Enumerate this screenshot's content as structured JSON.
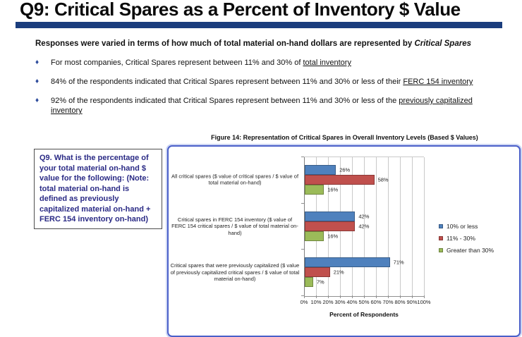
{
  "slide": {
    "title": "Q9:  Critical Spares as a Percent of Inventory $ Value",
    "intro": [
      {
        "text": "Responses were varied in terms of how much of total material on-hand dollars are represented by ",
        "style": "plain"
      },
      {
        "text": "Critical Spares",
        "style": "italic"
      }
    ],
    "bullet_marker": "♦",
    "bullets": [
      [
        {
          "text": "For most companies, Critical Spares represent between 11% and 30% of ",
          "style": "plain"
        },
        {
          "text": "total inventory",
          "style": "underline"
        }
      ],
      [
        {
          "text": "84% of the respondents indicated that Critical Spares represent between 11% and 30% or less of their ",
          "style": "plain"
        },
        {
          "text": "FERC 154 inventory",
          "style": "underline"
        }
      ],
      [
        {
          "text": "92% of the respondents indicated that Critical Spares represent between 11% and 30% or less of the ",
          "style": "plain"
        },
        {
          "text": "previously capitalized inventory",
          "style": "underline"
        }
      ]
    ],
    "question_box": "Q9.  What is the percentage of your total material on-hand $ value for the following:  (Note: total material on-hand is defined as previously capitalized material on-hand + FERC 154 inventory on-hand)",
    "figure_caption": "Figure 14:  Representation of Critical Spares in Overall Inventory Levels (Based $ Values)"
  },
  "colors": {
    "title_rule": "#1b3d7d",
    "bullet_marker": "#2b4a9b",
    "question_text": "#2a2a85",
    "chart_border": "#4a5fc9",
    "series_blue": "#4f81bd",
    "series_red": "#c0504d",
    "series_green": "#9bbb59"
  },
  "chart_data": {
    "type": "bar",
    "orientation": "horizontal",
    "title": "Figure 14:  Representation of Critical Spares in Overall Inventory Levels (Based $ Values)",
    "categories": [
      "All critical spares ($ value of critical spares / $ value of total material on-hand)",
      "Critical spares in FERC 154 inventory ($ value of FERC 154 critical spares / $ value of total material on-hand)",
      "Critical spares that were previously capitalized ($ value of previously capitalized critical spares / $ value of total material on-hand)"
    ],
    "series": [
      {
        "name": "10% or less",
        "color": "#4f81bd",
        "values": [
          26,
          42,
          71
        ]
      },
      {
        "name": "11% - 30%",
        "color": "#c0504d",
        "values": [
          58,
          42,
          21
        ]
      },
      {
        "name": "Greater than 30%",
        "color": "#9bbb59",
        "values": [
          16,
          16,
          7
        ]
      }
    ],
    "data_label_format": "{value}%",
    "xlabel": "Percent of Respondents",
    "xlim": [
      0,
      100
    ],
    "xtick_step": 10,
    "xticks": [
      "0%",
      "10%",
      "20%",
      "30%",
      "40%",
      "50%",
      "60%",
      "70%",
      "80%",
      "90%",
      "100%"
    ],
    "grid": true,
    "legend_position": "right"
  }
}
